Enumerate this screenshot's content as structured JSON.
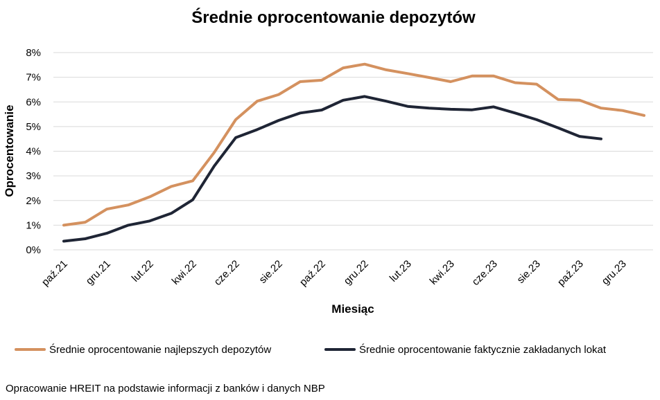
{
  "chart_data": {
    "type": "line",
    "title": "Średnie oprocentowanie depozytów",
    "xlabel": "Miesiąc",
    "ylabel": "Oprocentowanie",
    "ylim": [
      0,
      8
    ],
    "y_ticks": [
      "0%",
      "1%",
      "2%",
      "3%",
      "4%",
      "5%",
      "6%",
      "7%",
      "8%"
    ],
    "grid": true,
    "legend_position": "bottom",
    "x_tick_labels": [
      "paź.21",
      "gru.21",
      "lut.22",
      "kwi.22",
      "cze.22",
      "sie.22",
      "paź.22",
      "gru.22",
      "lut.23",
      "kwi.23",
      "cze.23",
      "sie.23",
      "paź.23",
      "gru.23"
    ],
    "x": [
      "paź.21",
      "lis.21",
      "gru.21",
      "sty.22",
      "lut.22",
      "mar.22",
      "kwi.22",
      "maj.22",
      "cze.22",
      "lip.22",
      "sie.22",
      "wrz.22",
      "paź.22",
      "lis.22",
      "gru.22",
      "sty.23",
      "lut.23",
      "mar.23",
      "kwi.23",
      "maj.23",
      "cze.23",
      "lip.23",
      "sie.23",
      "wrz.23",
      "paź.23",
      "lis.23",
      "gru.23",
      "sty.24"
    ],
    "series": [
      {
        "name": "Średnie oprocentowanie najlepszych depozytów",
        "color": "#d4915f",
        "values": [
          1.0,
          1.12,
          1.65,
          1.82,
          2.15,
          2.57,
          2.8,
          3.95,
          5.28,
          6.03,
          6.3,
          6.82,
          6.88,
          7.38,
          7.53,
          7.3,
          7.15,
          6.99,
          6.82,
          7.05,
          7.05,
          6.78,
          6.72,
          6.1,
          6.07,
          5.75,
          5.65,
          5.45
        ]
      },
      {
        "name": "Średnie oprocentowanie faktycznie zakładanych lokat",
        "color": "#1f2535",
        "values": [
          0.35,
          0.45,
          0.67,
          1.0,
          1.17,
          1.48,
          2.03,
          3.4,
          4.55,
          4.88,
          5.25,
          5.55,
          5.67,
          6.07,
          6.22,
          6.03,
          5.82,
          5.75,
          5.7,
          5.68,
          5.8,
          5.55,
          5.28,
          4.95,
          4.6,
          4.5,
          null,
          null
        ]
      }
    ]
  },
  "source_note": "Opracowanie HREIT na podstawie informacji z banków i danych NBP"
}
